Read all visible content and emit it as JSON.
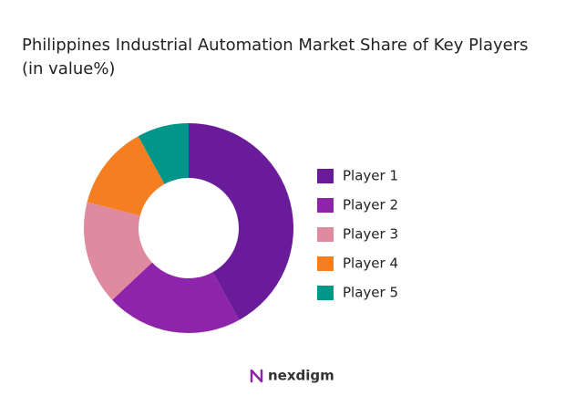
{
  "chart_data": {
    "type": "donut",
    "title": [
      "Philippines Industrial Automation Market Share of Key Players",
      "(in value%)"
    ],
    "categories": [
      "Player 1",
      "Player 2",
      "Player 3",
      "Player 4",
      "Player 5"
    ],
    "values": [
      42,
      21,
      16,
      13,
      8
    ],
    "colors": [
      "#6a1b9a",
      "#8e24aa",
      "#e08aa0",
      "#f57f20",
      "#00968a"
    ],
    "legend": "right"
  },
  "brand": "nexdigm"
}
